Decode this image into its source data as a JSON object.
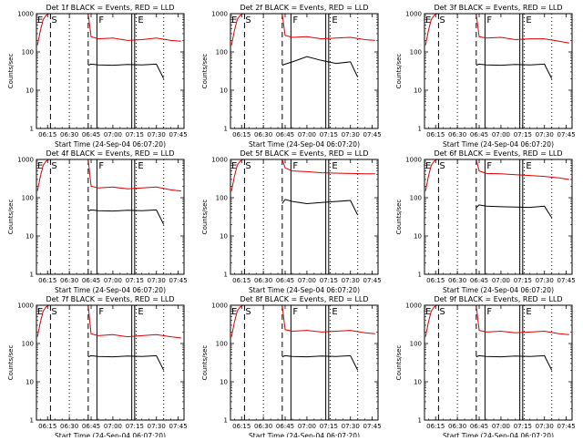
{
  "colors": {
    "events": "#000000",
    "lld": "#e00000",
    "axes": "#000000"
  },
  "panel_common": {
    "xlabel": "Start Time (24-Sep-04 06:07:20)",
    "ylabel": "Counts/sec",
    "x_tick_labels": [
      "06:15",
      "06:30",
      "06:45",
      "07:00",
      "07:15",
      "07:30",
      "07:45"
    ],
    "y_tick_labels": [
      "1",
      "10",
      "100",
      "1000"
    ],
    "markers": {
      "E": "E",
      "S": "S",
      "F": "F"
    }
  },
  "chart_data": [
    {
      "type": "line",
      "panel": 1,
      "title": "Det 1f BLACK = Events, RED = LLD",
      "xlabel": "Start Time (24-Sep-04 06:07:20)",
      "ylabel": "Counts/sec",
      "y_scale": "log",
      "ylim": [
        1,
        1000
      ],
      "xlim": [
        "06:07:20",
        "07:49"
      ],
      "marker_lines": {
        "dashed": [
          "06:17",
          "06:43"
        ],
        "dotted": [
          "06:30",
          "07:16",
          "07:35"
        ],
        "solid": [
          "06:49",
          "07:13",
          "07:15"
        ]
      },
      "series": [
        {
          "x": [
            "06:08",
            "06:10",
            "06:12",
            "06:14",
            "06:16"
          ],
          "y": [
            150,
            350,
            700,
            900,
            1000
          ]
        },
        {
          "x": [
            "06:43",
            "06:45",
            "06:50",
            "07:00",
            "07:10",
            "07:20",
            "07:30",
            "07:40",
            "07:47"
          ],
          "y": [
            1000,
            250,
            220,
            230,
            200,
            210,
            230,
            200,
            190
          ]
        },
        {
          "x": [
            "06:43",
            "06:45",
            "06:50",
            "07:00",
            "07:10",
            "07:20",
            "07:30",
            "07:35"
          ],
          "y": [
            45,
            48,
            46,
            45,
            47,
            46,
            48,
            20
          ]
        }
      ]
    },
    {
      "type": "line",
      "panel": 2,
      "title": "Det 2f BLACK = Events, RED = LLD",
      "xlabel": "Start Time (24-Sep-04 06:07:20)",
      "ylabel": "Counts/sec",
      "y_scale": "log",
      "ylim": [
        1,
        1000
      ],
      "xlim": [
        "06:07:20",
        "07:49"
      ],
      "marker_lines": {
        "dashed": [
          "06:17",
          "06:43"
        ],
        "dotted": [
          "06:30",
          "07:16",
          "07:35"
        ],
        "solid": [
          "06:49",
          "07:13",
          "07:15"
        ]
      },
      "series": [
        {
          "x": [
            "06:08",
            "06:10",
            "06:12",
            "06:14",
            "06:16"
          ],
          "y": [
            150,
            350,
            700,
            900,
            1000
          ]
        },
        {
          "x": [
            "06:43",
            "06:45",
            "06:50",
            "07:00",
            "07:10",
            "07:20",
            "07:30",
            "07:40",
            "07:47"
          ],
          "y": [
            1000,
            270,
            240,
            250,
            220,
            230,
            240,
            210,
            200
          ]
        },
        {
          "x": [
            "06:43",
            "06:45",
            "06:50",
            "07:00",
            "07:10",
            "07:20",
            "07:30",
            "07:35"
          ],
          "y": [
            45,
            48,
            55,
            75,
            60,
            50,
            55,
            22
          ]
        }
      ]
    },
    {
      "type": "line",
      "panel": 3,
      "title": "Det 3f BLACK = Events, RED = LLD",
      "xlabel": "Start Time (24-Sep-04 06:07:20)",
      "ylabel": "Counts/sec",
      "y_scale": "log",
      "ylim": [
        1,
        1000
      ],
      "xlim": [
        "06:07:20",
        "07:49"
      ],
      "marker_lines": {
        "dashed": [
          "06:17",
          "06:43"
        ],
        "dotted": [
          "06:30",
          "07:16",
          "07:35"
        ],
        "solid": [
          "06:49",
          "07:13",
          "07:15"
        ]
      },
      "series": [
        {
          "x": [
            "06:08",
            "06:10",
            "06:12",
            "06:14",
            "06:16"
          ],
          "y": [
            150,
            350,
            700,
            900,
            1000
          ]
        },
        {
          "x": [
            "06:43",
            "06:45",
            "06:50",
            "07:00",
            "07:10",
            "07:20",
            "07:30",
            "07:40",
            "07:47"
          ],
          "y": [
            1000,
            250,
            230,
            240,
            210,
            220,
            220,
            190,
            170
          ]
        },
        {
          "x": [
            "06:43",
            "06:45",
            "06:50",
            "07:00",
            "07:10",
            "07:20",
            "07:30",
            "07:35"
          ],
          "y": [
            45,
            48,
            46,
            45,
            47,
            46,
            48,
            20
          ]
        }
      ]
    },
    {
      "type": "line",
      "panel": 4,
      "title": "Det 4f BLACK = Events, RED = LLD",
      "xlabel": "Start Time (24-Sep-04 06:07:20)",
      "ylabel": "Counts/sec",
      "y_scale": "log",
      "ylim": [
        1,
        1000
      ],
      "xlim": [
        "06:07:20",
        "07:49"
      ],
      "marker_lines": {
        "dashed": [
          "06:17",
          "06:43"
        ],
        "dotted": [
          "06:30",
          "07:16",
          "07:35"
        ],
        "solid": [
          "06:49",
          "07:13",
          "07:15"
        ]
      },
      "series": [
        {
          "x": [
            "06:08",
            "06:10",
            "06:12",
            "06:14",
            "06:16"
          ],
          "y": [
            150,
            350,
            700,
            900,
            1000
          ]
        },
        {
          "x": [
            "06:43",
            "06:45",
            "06:50",
            "07:00",
            "07:10",
            "07:20",
            "07:30",
            "07:40",
            "07:47"
          ],
          "y": [
            1000,
            200,
            180,
            190,
            170,
            180,
            190,
            160,
            150
          ]
        },
        {
          "x": [
            "06:43",
            "06:45",
            "06:50",
            "07:00",
            "07:10",
            "07:20",
            "07:30",
            "07:35"
          ],
          "y": [
            45,
            48,
            46,
            45,
            47,
            46,
            48,
            20
          ]
        }
      ]
    },
    {
      "type": "line",
      "panel": 5,
      "title": "Det 5f BLACK = Events, RED = LLD",
      "xlabel": "Start Time (24-Sep-04 06:07:20)",
      "ylabel": "Counts/sec",
      "y_scale": "log",
      "ylim": [
        1,
        1000
      ],
      "xlim": [
        "06:07:20",
        "07:49"
      ],
      "marker_lines": {
        "dashed": [
          "06:17",
          "06:43"
        ],
        "dotted": [
          "06:30",
          "07:16",
          "07:35"
        ],
        "solid": [
          "06:49",
          "07:13",
          "07:15"
        ]
      },
      "series": [
        {
          "x": [
            "06:08",
            "06:10",
            "06:12",
            "06:14",
            "06:16"
          ],
          "y": [
            150,
            350,
            700,
            900,
            1000
          ]
        },
        {
          "x": [
            "06:43",
            "06:45",
            "06:50",
            "07:00",
            "07:10",
            "07:20",
            "07:30",
            "07:40",
            "07:47"
          ],
          "y": [
            1000,
            600,
            500,
            480,
            450,
            440,
            430,
            420,
            420
          ]
        },
        {
          "x": [
            "06:43",
            "06:45",
            "06:50",
            "07:00",
            "07:10",
            "07:20",
            "07:30",
            "07:35"
          ],
          "y": [
            70,
            90,
            80,
            70,
            75,
            80,
            85,
            35
          ]
        }
      ]
    },
    {
      "type": "line",
      "panel": 6,
      "title": "Det 6f BLACK = Events, RED = LLD",
      "xlabel": "Start Time (24-Sep-04 06:07:20)",
      "ylabel": "Counts/sec",
      "y_scale": "log",
      "ylim": [
        1,
        1000
      ],
      "xlim": [
        "06:07:20",
        "07:49"
      ],
      "marker_lines": {
        "dashed": [
          "06:17",
          "06:43"
        ],
        "dotted": [
          "06:30",
          "07:16",
          "07:35"
        ],
        "solid": [
          "06:49",
          "07:13",
          "07:15"
        ]
      },
      "series": [
        {
          "x": [
            "06:08",
            "06:10",
            "06:12",
            "06:14",
            "06:16"
          ],
          "y": [
            150,
            350,
            700,
            900,
            1000
          ]
        },
        {
          "x": [
            "06:43",
            "06:45",
            "06:50",
            "07:00",
            "07:10",
            "07:20",
            "07:30",
            "07:40",
            "07:47"
          ],
          "y": [
            1000,
            500,
            430,
            420,
            400,
            380,
            360,
            330,
            300
          ]
        },
        {
          "x": [
            "06:43",
            "06:45",
            "06:50",
            "07:00",
            "07:10",
            "07:20",
            "07:30",
            "07:35"
          ],
          "y": [
            55,
            65,
            60,
            58,
            57,
            56,
            60,
            30
          ]
        }
      ]
    },
    {
      "type": "line",
      "panel": 7,
      "title": "Det 7f BLACK = Events, RED = LLD",
      "xlabel": "Start Time (24-Sep-04 06:07:20)",
      "ylabel": "Counts/sec",
      "y_scale": "log",
      "ylim": [
        1,
        1000
      ],
      "xlim": [
        "06:07:20",
        "07:49"
      ],
      "marker_lines": {
        "dashed": [
          "06:17",
          "06:43"
        ],
        "dotted": [
          "06:30",
          "07:16",
          "07:35"
        ],
        "solid": [
          "06:49",
          "07:13",
          "07:15"
        ]
      },
      "series": [
        {
          "x": [
            "06:08",
            "06:10",
            "06:12",
            "06:14",
            "06:16"
          ],
          "y": [
            150,
            350,
            700,
            900,
            1000
          ]
        },
        {
          "x": [
            "06:43",
            "06:45",
            "06:50",
            "07:00",
            "07:10",
            "07:20",
            "07:30",
            "07:40",
            "07:47"
          ],
          "y": [
            1000,
            180,
            160,
            170,
            150,
            160,
            170,
            150,
            140
          ]
        },
        {
          "x": [
            "06:43",
            "06:45",
            "06:50",
            "07:00",
            "07:10",
            "07:20",
            "07:30",
            "07:35"
          ],
          "y": [
            45,
            48,
            46,
            45,
            47,
            46,
            48,
            20
          ]
        }
      ]
    },
    {
      "type": "line",
      "panel": 8,
      "title": "Det 8f BLACK = Events, RED = LLD",
      "xlabel": "Start Time (24-Sep-04 06:07:20)",
      "ylabel": "Counts/sec",
      "y_scale": "log",
      "ylim": [
        1,
        1000
      ],
      "xlim": [
        "06:07:20",
        "07:49"
      ],
      "marker_lines": {
        "dashed": [
          "06:17",
          "06:43"
        ],
        "dotted": [
          "06:30",
          "07:16",
          "07:35"
        ],
        "solid": [
          "06:49",
          "07:13",
          "07:15"
        ]
      },
      "series": [
        {
          "x": [
            "06:08",
            "06:10",
            "06:12",
            "06:14",
            "06:16"
          ],
          "y": [
            150,
            350,
            700,
            900,
            1000
          ]
        },
        {
          "x": [
            "06:43",
            "06:45",
            "06:50",
            "07:00",
            "07:10",
            "07:20",
            "07:30",
            "07:40",
            "07:47"
          ],
          "y": [
            1000,
            230,
            210,
            220,
            200,
            210,
            220,
            190,
            180
          ]
        },
        {
          "x": [
            "06:43",
            "06:45",
            "06:50",
            "07:00",
            "07:10",
            "07:20",
            "07:30",
            "07:35"
          ],
          "y": [
            45,
            48,
            46,
            45,
            47,
            46,
            48,
            20
          ]
        }
      ]
    },
    {
      "type": "line",
      "panel": 9,
      "title": "Det 9f BLACK = Events, RED = LLD",
      "xlabel": "Start Time (24-Sep-04 06:07:20)",
      "ylabel": "Counts/sec",
      "y_scale": "log",
      "ylim": [
        1,
        1000
      ],
      "xlim": [
        "06:07:20",
        "07:49"
      ],
      "marker_lines": {
        "dashed": [
          "06:17",
          "06:43"
        ],
        "dotted": [
          "06:30",
          "07:16",
          "07:35"
        ],
        "solid": [
          "06:49",
          "07:13",
          "07:15"
        ]
      },
      "series": [
        {
          "x": [
            "06:08",
            "06:10",
            "06:12",
            "06:14",
            "06:16"
          ],
          "y": [
            150,
            350,
            700,
            900,
            1000
          ]
        },
        {
          "x": [
            "06:43",
            "06:45",
            "06:50",
            "07:00",
            "07:10",
            "07:20",
            "07:30",
            "07:40",
            "07:47"
          ],
          "y": [
            1000,
            220,
            200,
            210,
            190,
            200,
            210,
            180,
            170
          ]
        },
        {
          "x": [
            "06:43",
            "06:45",
            "06:50",
            "07:00",
            "07:10",
            "07:20",
            "07:30",
            "07:35"
          ],
          "y": [
            45,
            48,
            46,
            45,
            47,
            46,
            48,
            20
          ]
        }
      ]
    }
  ]
}
